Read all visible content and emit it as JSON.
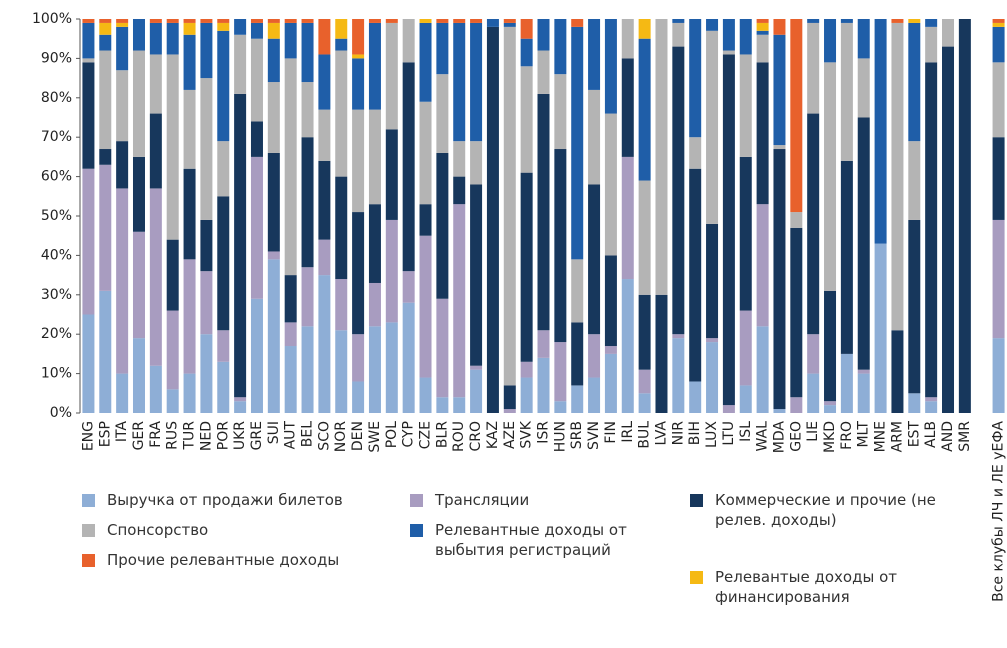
{
  "chart_data": {
    "type": "stacked_bar",
    "categories": [
      "ENG",
      "ESP",
      "ITA",
      "GER",
      "FRA",
      "RUS",
      "TUR",
      "NED",
      "POR",
      "UKR",
      "GRE",
      "SUI",
      "AUT",
      "BEL",
      "SCO",
      "NOR",
      "DEN",
      "SWE",
      "POL",
      "CYP",
      "CZE",
      "BLR",
      "ROU",
      "CRO",
      "KAZ",
      "AZE",
      "SVK",
      "ISR",
      "HUN",
      "SRB",
      "SVN",
      "FIN",
      "IRL",
      "BUL",
      "LVA",
      "NIR",
      "BIH",
      "LUX",
      "LTU",
      "ISL",
      "WAL",
      "MDA",
      "GEO",
      "LIE",
      "MKD",
      "FRO",
      "MLT",
      "MNE",
      "ARM",
      "EST",
      "ALB",
      "AND",
      "SMR",
      null,
      "Все клубы ЛЧ и ЛЕ уЕФА"
    ],
    "series": [
      {
        "name": "Выручка от продажи билетов",
        "color": "#8eaed6",
        "values": [
          25,
          31,
          10,
          19,
          12,
          6,
          10,
          20,
          13,
          3,
          29,
          39,
          17,
          22,
          35,
          21,
          8,
          22,
          23,
          28,
          9,
          4,
          4,
          11,
          0,
          0,
          9,
          14,
          3,
          7,
          9,
          15,
          34,
          5,
          0,
          19,
          8,
          18,
          0,
          7,
          22,
          1,
          0,
          10,
          2,
          15,
          10,
          43,
          0,
          5,
          3,
          0,
          0,
          null,
          19
        ]
      },
      {
        "name": "Трансляции",
        "color": "#a89cc0",
        "values": [
          37,
          32,
          47,
          27,
          45,
          20,
          29,
          16,
          8,
          1,
          36,
          2,
          6,
          15,
          9,
          13,
          12,
          11,
          26,
          8,
          36,
          25,
          49,
          1,
          0,
          1,
          4,
          7,
          15,
          0,
          11,
          2,
          31,
          6,
          0,
          1,
          0,
          1,
          2,
          19,
          31,
          0,
          4,
          10,
          1,
          0,
          1,
          0,
          0,
          0,
          1,
          0,
          0,
          null,
          30
        ]
      },
      {
        "name": "Коммерческие и прочие (не релев. доходы)",
        "color": "#17375c",
        "values": [
          27,
          4,
          12,
          19,
          19,
          18,
          23,
          13,
          34,
          77,
          9,
          25,
          12,
          33,
          20,
          26,
          31,
          20,
          23,
          53,
          8,
          37,
          7,
          46,
          98,
          6,
          48,
          60,
          49,
          16,
          38,
          23,
          25,
          19,
          30,
          73,
          54,
          29,
          89,
          39,
          36,
          66,
          43,
          56,
          28,
          49,
          64,
          0,
          21,
          44,
          85,
          93,
          100,
          null,
          21
        ]
      },
      {
        "name": "Спонсорство",
        "color": "#b4b4b4",
        "values": [
          1,
          25,
          18,
          27,
          15,
          47,
          20,
          36,
          14,
          15,
          21,
          18,
          55,
          14,
          13,
          32,
          26,
          24,
          27,
          11,
          26,
          20,
          9,
          11,
          0,
          91,
          27,
          11,
          19,
          16,
          24,
          36,
          10,
          29,
          70,
          6,
          8,
          49,
          1,
          26,
          7,
          1,
          4,
          23,
          58,
          35,
          15,
          0,
          78,
          20,
          9,
          7,
          0,
          null,
          19
        ]
      },
      {
        "name": "Релевантные доходы от выбытия регистраций",
        "color": "#1f5ea8",
        "values": [
          9,
          4,
          11,
          8,
          8,
          8,
          14,
          14,
          28,
          4,
          4,
          11,
          9,
          15,
          14,
          3,
          13,
          22,
          0,
          0,
          20,
          13,
          30,
          30,
          2,
          1,
          7,
          8,
          14,
          59,
          18,
          24,
          0,
          36,
          0,
          1,
          30,
          3,
          8,
          9,
          1,
          28,
          0,
          1,
          11,
          1,
          10,
          57,
          0,
          30,
          2,
          0,
          0,
          null,
          9
        ]
      },
      {
        "name": "Релевантые доходы от финансирования",
        "color": "#f5b914",
        "values": [
          0,
          3,
          1,
          0,
          0,
          0,
          3,
          0,
          2,
          0,
          0,
          4,
          0,
          0,
          0,
          5,
          1,
          0,
          0,
          0,
          1,
          0,
          0,
          0,
          0,
          0,
          0,
          0,
          0,
          0,
          0,
          0,
          0,
          5,
          0,
          0,
          0,
          0,
          0,
          0,
          2,
          0,
          0,
          0,
          0,
          0,
          0,
          0,
          0,
          1,
          0,
          0,
          0,
          null,
          1
        ]
      },
      {
        "name": "Прочие релевантные доходы",
        "color": "#e8612c",
        "values": [
          1,
          1,
          1,
          0,
          1,
          1,
          1,
          1,
          1,
          0,
          1,
          1,
          1,
          1,
          9,
          0,
          9,
          1,
          1,
          0,
          0,
          1,
          1,
          1,
          0,
          1,
          5,
          0,
          0,
          2,
          0,
          0,
          0,
          0,
          0,
          0,
          0,
          0,
          0,
          0,
          1,
          4,
          49,
          0,
          0,
          0,
          0,
          0,
          1,
          0,
          0,
          0,
          0,
          null,
          1
        ]
      }
    ],
    "ylim": [
      0,
      100
    ],
    "yticks": [
      {
        "value": 0,
        "label": "0%"
      },
      {
        "value": 10,
        "label": "10%"
      },
      {
        "value": 20,
        "label": "20%"
      },
      {
        "value": 30,
        "label": "30%"
      },
      {
        "value": 40,
        "label": "40%"
      },
      {
        "value": 50,
        "label": "50%"
      },
      {
        "value": 60,
        "label": "60%"
      },
      {
        "value": 70,
        "label": "70%"
      },
      {
        "value": 80,
        "label": "80%"
      },
      {
        "value": 90,
        "label": "90%"
      },
      {
        "value": 100,
        "label": "100%"
      }
    ],
    "grid": false
  }
}
